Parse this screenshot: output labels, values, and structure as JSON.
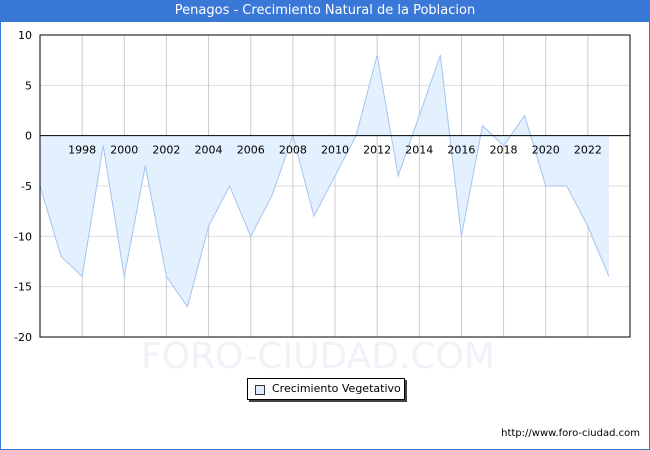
{
  "chart_data": {
    "type": "area",
    "title": "Penagos - Crecimiento Natural de la Poblacion",
    "xlabel": "",
    "ylabel": "",
    "x": [
      1996,
      1997,
      1998,
      1999,
      2000,
      2001,
      2002,
      2003,
      2004,
      2005,
      2006,
      2007,
      2008,
      2009,
      2010,
      2011,
      2012,
      2013,
      2014,
      2015,
      2016,
      2017,
      2018,
      2019,
      2020,
      2021,
      2022,
      2023
    ],
    "series": [
      {
        "name": "Crecimiento Vegetativo",
        "values": [
          -5,
          -12,
          -14,
          -1,
          -14,
          -3,
          -14,
          -17,
          -9,
          -5,
          -10,
          -6,
          0,
          -8,
          -4,
          0,
          8,
          -4,
          2,
          8,
          -10,
          1,
          -1,
          2,
          -5,
          -5,
          -9,
          -14
        ]
      }
    ],
    "xlim": [
      1996,
      2024
    ],
    "ylim": [
      -20,
      10
    ],
    "xticks": [
      "1998",
      "2000",
      "2002",
      "2004",
      "2006",
      "2008",
      "2010",
      "2012",
      "2014",
      "2016",
      "2018",
      "2020",
      "2022"
    ],
    "yticks": [
      "10",
      "5",
      "0",
      "-5",
      "-10",
      "-15",
      "-20"
    ],
    "grid": true,
    "legend_position": "bottom-center",
    "colors": {
      "line": "#a4c4f0",
      "fill": "#e3f0fe",
      "header": "#3a78d8"
    }
  },
  "watermark": "FORO-CIUDAD.COM",
  "footer_url": "http://www.foro-ciudad.com"
}
